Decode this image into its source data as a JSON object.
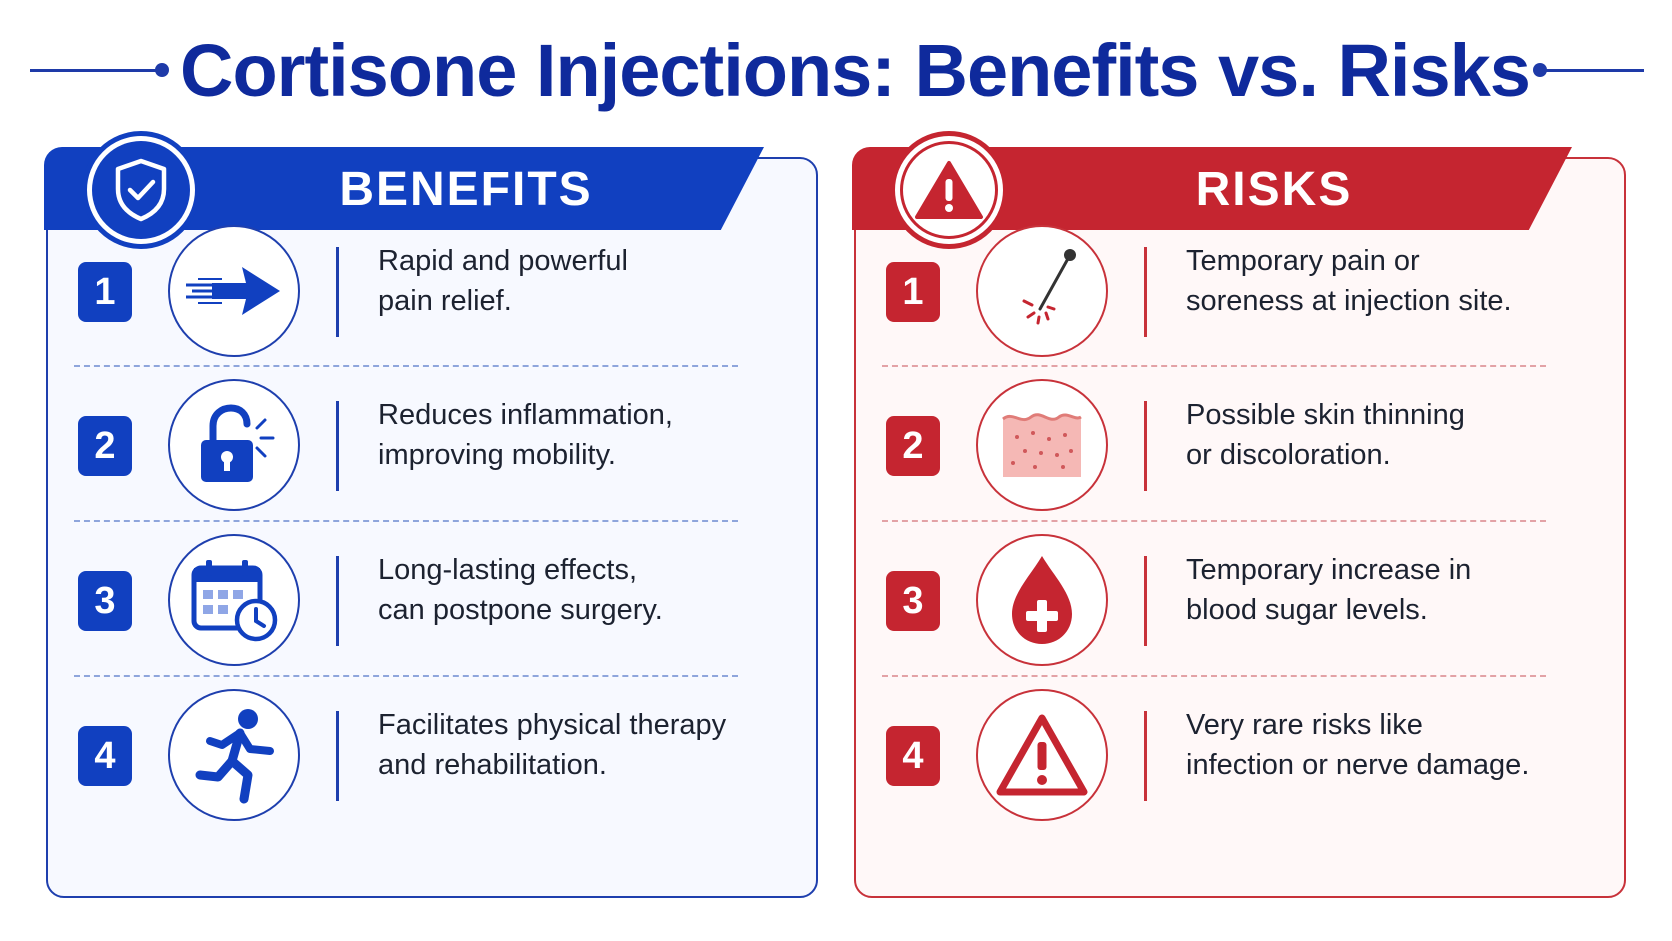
{
  "title": "Cortisone Injections: Benefits vs. Risks",
  "colors": {
    "benefits_primary": "#1140c0",
    "benefits_title": "#0f2a9c",
    "risks_primary": "#c52530"
  },
  "benefits": {
    "heading": "BENEFITS",
    "badge_icon": "shield-check-icon",
    "items": [
      {
        "number": "1",
        "icon": "fast-arrow-icon",
        "line1": "Rapid and powerful",
        "line2": "pain relief."
      },
      {
        "number": "2",
        "icon": "unlock-icon",
        "line1": "Reduces inflammation,",
        "line2": "improving mobility."
      },
      {
        "number": "3",
        "icon": "calendar-clock-icon",
        "line1": "Long-lasting effects,",
        "line2": "can postpone surgery."
      },
      {
        "number": "4",
        "icon": "running-person-icon",
        "line1": "Facilitates physical therapy",
        "line2": "and rehabilitation."
      }
    ]
  },
  "risks": {
    "heading": "RISKS",
    "badge_icon": "warning-triangle-icon",
    "items": [
      {
        "number": "1",
        "icon": "needle-icon",
        "line1": "Temporary pain or",
        "line2": "soreness at injection site."
      },
      {
        "number": "2",
        "icon": "skin-layer-icon",
        "line1": "Possible skin thinning",
        "line2": "or discoloration."
      },
      {
        "number": "3",
        "icon": "blood-drop-plus-icon",
        "line1": "Temporary increase in",
        "line2": "blood sugar levels."
      },
      {
        "number": "4",
        "icon": "warning-triangle-icon",
        "line1": "Very rare risks like",
        "line2": "infection or nerve damage."
      }
    ]
  }
}
